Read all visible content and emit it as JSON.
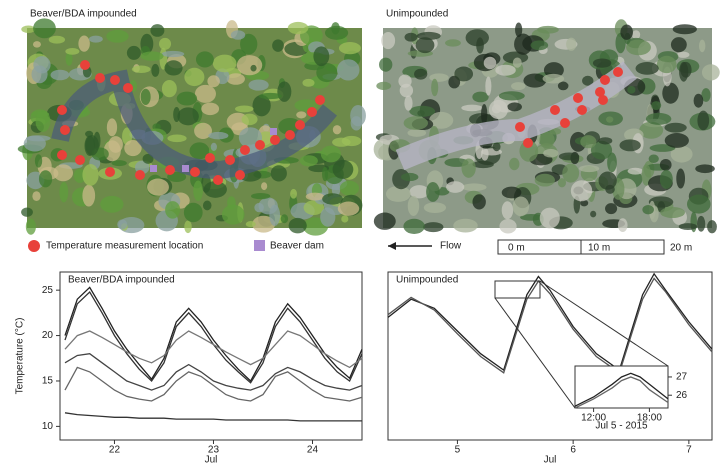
{
  "panels": {
    "left_photo_title": "Beaver/BDA impounded",
    "right_photo_title": "Unimpounded",
    "legend_location": "Temperature measurement location",
    "legend_dam": "Beaver dam",
    "flow": "Flow",
    "scale_labels": [
      "0 m",
      "10 m",
      "20 m"
    ]
  },
  "chart_data": [
    {
      "type": "line",
      "title": "Beaver/BDA impounded",
      "ylabel": "Temperature (°C)",
      "xlabel": "Jul",
      "xlim": [
        21.45,
        24.5
      ],
      "xticks": [
        22,
        23,
        24
      ],
      "ylim": [
        8.5,
        27
      ],
      "yticks": [
        10,
        15,
        20,
        25
      ],
      "x": [
        21.5,
        21.625,
        21.75,
        21.875,
        22,
        22.125,
        22.25,
        22.375,
        22.5,
        22.625,
        22.75,
        22.875,
        23,
        23.125,
        23.25,
        23.375,
        23.5,
        23.625,
        23.75,
        23.875,
        24,
        24.125,
        24.25,
        24.375,
        24.5
      ],
      "series": [
        {
          "color": "#222222",
          "values": [
            20,
            24,
            25.3,
            23,
            20.5,
            18.5,
            16.8,
            15.2,
            17.5,
            21.5,
            23,
            21.5,
            19.5,
            17.8,
            16.3,
            15,
            17.5,
            21.5,
            23.5,
            22,
            20,
            18,
            16.5,
            15.3,
            18.5
          ]
        },
        {
          "color": "#333333",
          "values": [
            19.5,
            23.5,
            24.8,
            22.5,
            20,
            18,
            16.3,
            15,
            17,
            21,
            22.5,
            21,
            19,
            17.3,
            16,
            14.8,
            17,
            21,
            23,
            21.5,
            19.5,
            17.5,
            16,
            15,
            18
          ]
        },
        {
          "color": "#777777",
          "values": [
            18.5,
            20,
            20.5,
            19.8,
            19,
            18.2,
            17.5,
            17,
            17.8,
            19.5,
            20.5,
            19.8,
            19,
            18.2,
            17.5,
            16.8,
            17.5,
            19,
            20.5,
            20,
            19,
            18,
            17.2,
            16.5,
            17.5
          ]
        },
        {
          "color": "#444444",
          "values": [
            17,
            17.8,
            18,
            17,
            16,
            15,
            14.5,
            14,
            14.5,
            16,
            16.8,
            16,
            15,
            14.5,
            14.2,
            14,
            14.5,
            15.8,
            16.5,
            16,
            15.2,
            14.5,
            14.2,
            14,
            14.5
          ]
        },
        {
          "color": "#666666",
          "values": [
            14,
            16.5,
            16,
            15,
            14,
            13.3,
            13,
            12.8,
            13.5,
            15,
            16,
            15.5,
            14.5,
            13.5,
            13,
            12.8,
            13.5,
            15.5,
            16,
            15,
            14,
            13.2,
            13,
            12.8,
            13.2
          ]
        },
        {
          "color": "#333333",
          "values": [
            11.5,
            11.3,
            11.2,
            11.1,
            11,
            11,
            10.9,
            10.9,
            10.9,
            10.8,
            10.8,
            10.8,
            10.8,
            10.7,
            10.7,
            10.7,
            10.7,
            10.7,
            10.7,
            10.6,
            10.6,
            10.6,
            10.6,
            10.6,
            10.6
          ]
        }
      ]
    },
    {
      "type": "line",
      "title": "Unimpounded",
      "xlabel": "Jul",
      "xlim": [
        4.4,
        7.2
      ],
      "xticks": [
        5,
        6,
        7
      ],
      "ylim": [
        8.5,
        27
      ],
      "x": [
        4.4,
        4.6,
        4.8,
        5.0,
        5.2,
        5.4,
        5.6,
        5.7,
        5.8,
        6.0,
        6.2,
        6.4,
        6.6,
        6.7,
        6.8,
        7.0,
        7.2
      ],
      "series": [
        {
          "color": "#222222",
          "values": [
            22,
            24,
            23,
            20.5,
            18,
            16.2,
            24.5,
            26.5,
            25,
            21,
            18,
            16.2,
            24.5,
            26.8,
            25,
            21.5,
            18.5
          ]
        },
        {
          "color": "#555555",
          "values": [
            22.3,
            24.2,
            22.8,
            20.2,
            17.7,
            15.9,
            24,
            26,
            24.6,
            20.7,
            17.7,
            15.9,
            24,
            26.3,
            24.8,
            21.2,
            18.2
          ]
        }
      ]
    },
    {
      "type": "line",
      "xlabel": "Jul 5 - 2015",
      "xlim": [
        10,
        20
      ],
      "xticks": [
        {
          "value": 12,
          "label": "12:00"
        },
        {
          "value": 18,
          "label": "18:00"
        }
      ],
      "ylim": [
        25.3,
        27.6
      ],
      "yticks": [
        26,
        27
      ],
      "x": [
        10,
        12,
        14,
        15,
        16,
        17,
        18,
        20
      ],
      "series": [
        {
          "color": "#222222",
          "values": [
            25.4,
            25.9,
            26.6,
            27.0,
            27.2,
            27.0,
            26.6,
            25.8
          ]
        },
        {
          "color": "#666666",
          "values": [
            25.3,
            25.8,
            26.4,
            26.8,
            27.0,
            26.8,
            26.3,
            25.6
          ]
        }
      ]
    }
  ]
}
